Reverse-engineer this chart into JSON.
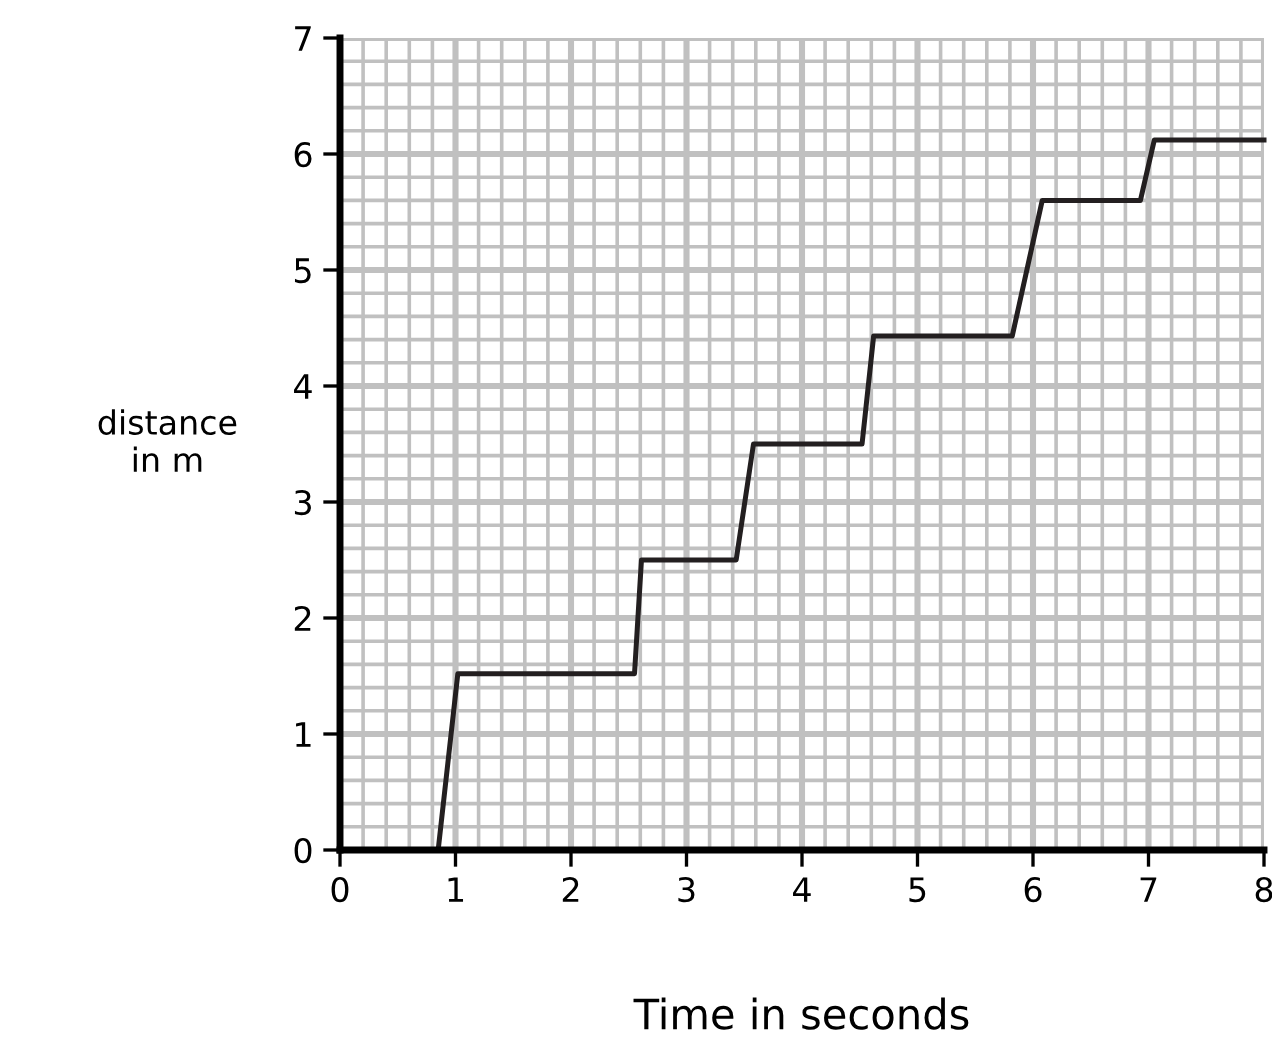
{
  "chart_data": {
    "type": "line",
    "xlabel": "Time in seconds",
    "ylabel": "distance\nin m",
    "x": [
      0.85,
      1.02,
      2.55,
      2.61,
      3.43,
      3.58,
      4.52,
      4.62,
      5.82,
      6.08,
      6.93,
      7.05,
      8
    ],
    "series": [
      {
        "color": "#231f20",
        "values": [
          0,
          1.52,
          1.52,
          2.5,
          2.5,
          3.5,
          3.5,
          4.43,
          4.43,
          5.6,
          5.6,
          6.12,
          6.12
        ]
      }
    ],
    "xlim": [
      0,
      8
    ],
    "ylim": [
      0,
      7
    ],
    "xticks": [
      0,
      1,
      2,
      3,
      4,
      5,
      6,
      7,
      8
    ],
    "yticks": [
      0,
      1,
      2,
      3,
      4,
      5,
      6,
      7
    ],
    "grid": true,
    "marker": "none",
    "line_style": "solid",
    "legend": false
  }
}
